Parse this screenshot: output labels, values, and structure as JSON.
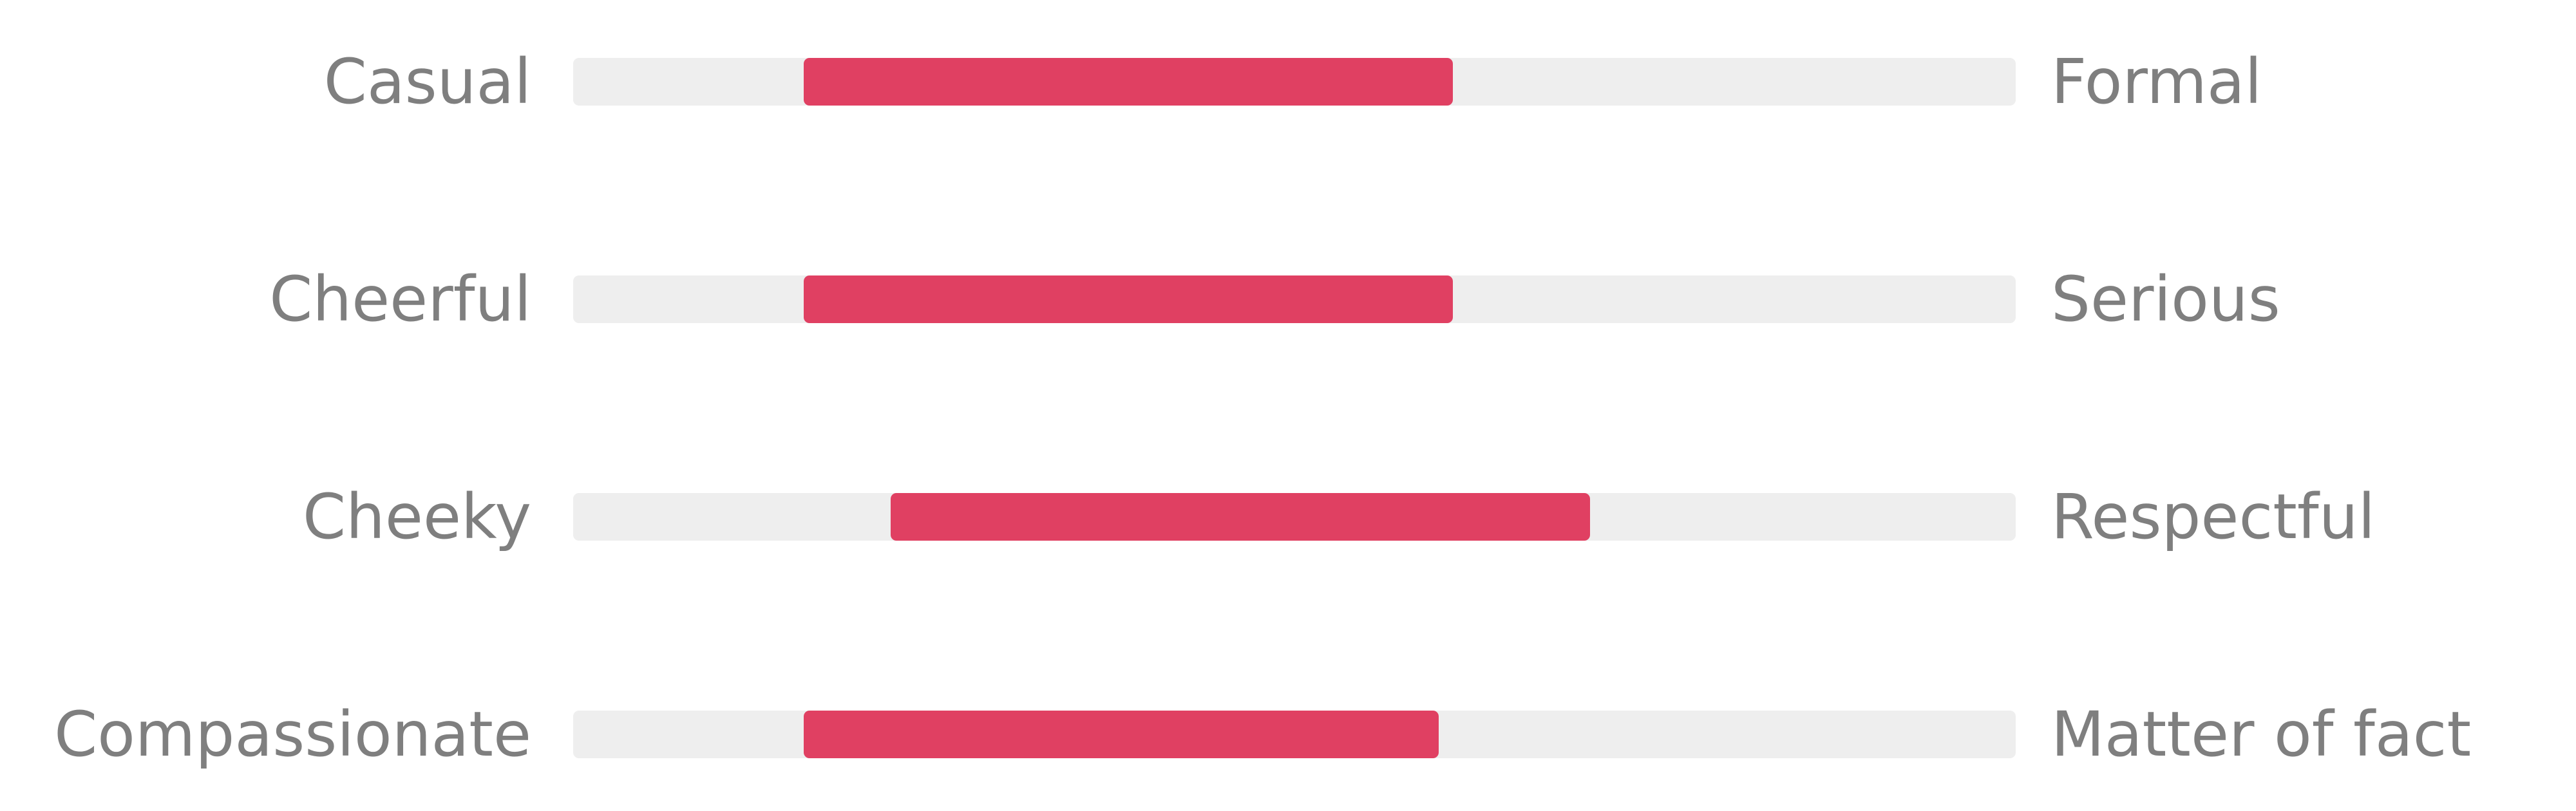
{
  "chart_data": {
    "type": "bar",
    "colors": {
      "track": "#eeeeee",
      "fill": "#e04062",
      "label": "#7f7f7f"
    },
    "scales": [
      {
        "left_label": "Casual",
        "right_label": "Formal",
        "range": [
          0.16,
          0.61
        ]
      },
      {
        "left_label": "Cheerful",
        "right_label": "Serious",
        "range": [
          0.16,
          0.61
        ]
      },
      {
        "left_label": "Cheeky",
        "right_label": "Respectful",
        "range": [
          0.22,
          0.705
        ]
      },
      {
        "left_label": "Compassionate",
        "right_label": "Matter of fact",
        "range": [
          0.16,
          0.6
        ]
      }
    ]
  }
}
